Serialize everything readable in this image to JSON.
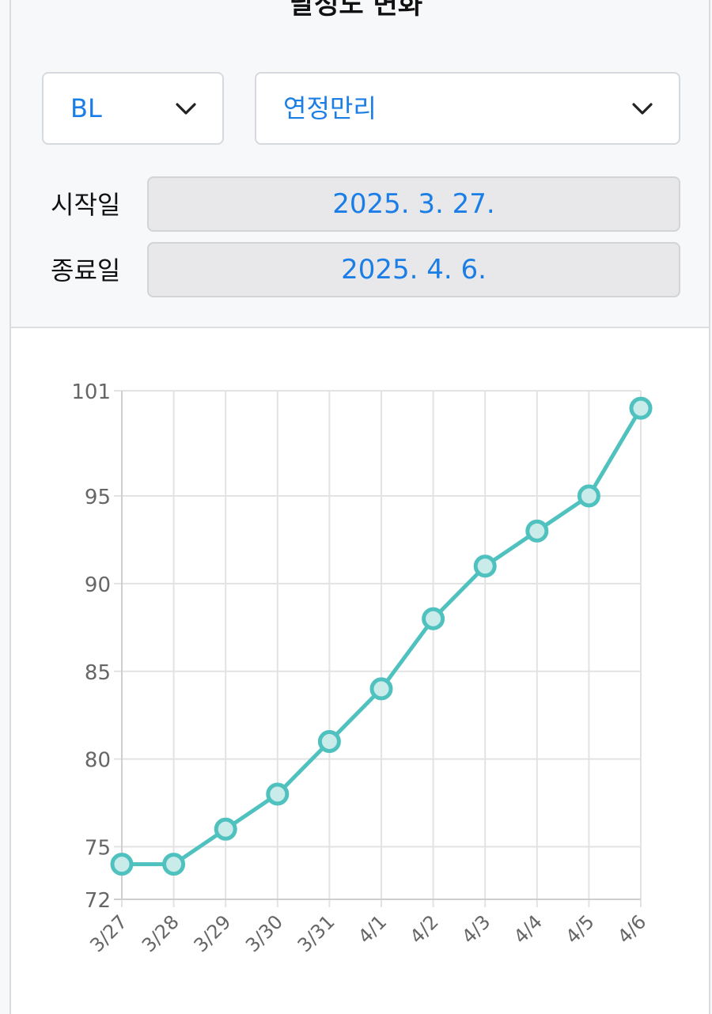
{
  "header": {
    "title": "달성도 변화"
  },
  "filters": {
    "category_select": {
      "value": "BL",
      "icon": "chevron-down-icon"
    },
    "location_select": {
      "value": "연정만리",
      "icon": "chevron-down-icon"
    }
  },
  "dates": {
    "start_label": "시작일",
    "start_value": "2025. 3. 27.",
    "end_label": "종료일",
    "end_value": "2025. 4. 6."
  },
  "colors": {
    "accent": "#1a7ee6",
    "series": "#4fc1be",
    "series_fill": "#c9ecea",
    "grid": "#e3e3e3",
    "tick": "#666666"
  },
  "chart_data": {
    "type": "line",
    "title": "",
    "xlabel": "",
    "ylabel": "",
    "categories": [
      "3/27",
      "3/28",
      "3/29",
      "3/30",
      "3/31",
      "4/1",
      "4/2",
      "4/3",
      "4/4",
      "4/5",
      "4/6"
    ],
    "series": [
      {
        "values": [
          74,
          74,
          76,
          78,
          81,
          84,
          88,
          91,
          93,
          95,
          100
        ]
      }
    ],
    "ylim": [
      72,
      101
    ],
    "yticks": [
      72,
      75,
      80,
      85,
      90,
      95,
      101
    ],
    "grid": true,
    "legend": "none"
  }
}
